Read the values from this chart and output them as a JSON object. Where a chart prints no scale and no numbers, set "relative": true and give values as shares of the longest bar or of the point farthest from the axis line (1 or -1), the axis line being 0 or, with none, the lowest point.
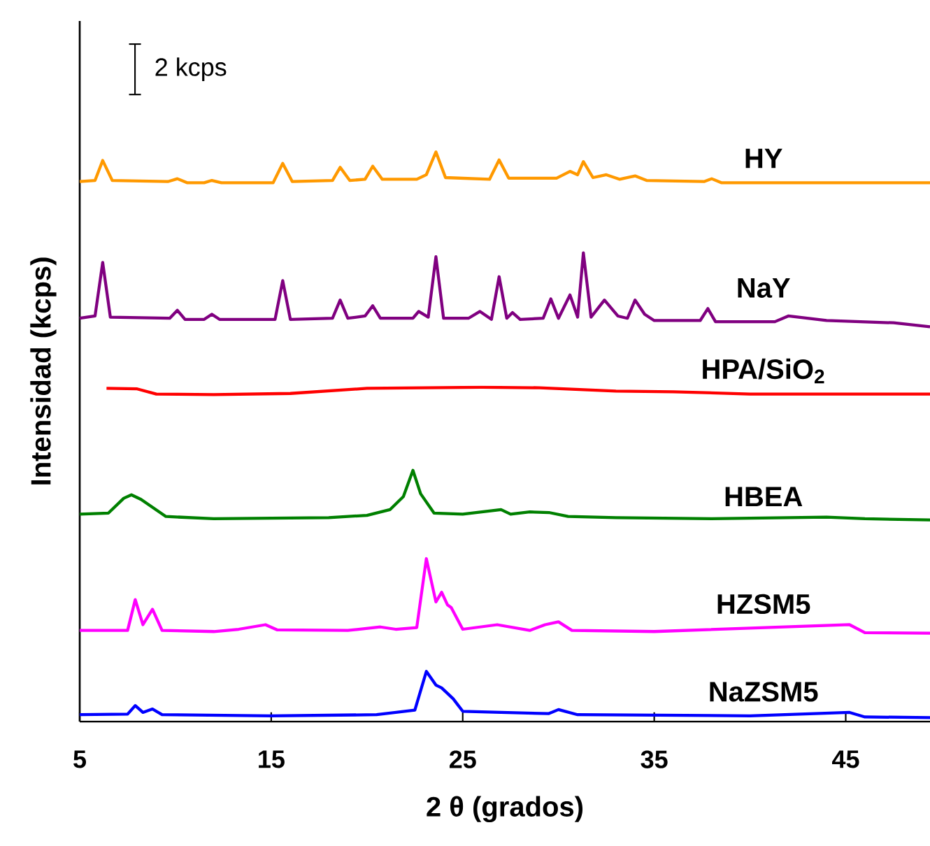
{
  "chart_data": {
    "type": "line",
    "relative": true,
    "xlabel": "2 θ (grados)",
    "ylabel": "Intensidad (kcps)",
    "xlim": [
      5,
      49.4
    ],
    "xticks": [
      5,
      15,
      25,
      35,
      45
    ],
    "annotations": [
      "2 kcps"
    ],
    "series": [
      {
        "name": "HY",
        "color": "#ff9900",
        "x": [
          5,
          5.8,
          6.2,
          6.7,
          9.6,
          10.1,
          10.6,
          11.5,
          11.9,
          12.4,
          15.1,
          15.6,
          16.1,
          18.2,
          18.6,
          19.1,
          19.9,
          20.3,
          20.8,
          22.6,
          23.1,
          23.6,
          24.1,
          26.4,
          26.9,
          27.4,
          29.9,
          30.6,
          31.0,
          31.3,
          31.8,
          32.5,
          33.2,
          34.0,
          34.6,
          37.6,
          38.0,
          38.5,
          49.4
        ],
        "values": [
          0.948,
          0.95,
          0.985,
          0.95,
          0.948,
          0.953,
          0.946,
          0.946,
          0.95,
          0.946,
          0.946,
          0.98,
          0.948,
          0.95,
          0.973,
          0.95,
          0.952,
          0.975,
          0.952,
          0.952,
          0.96,
          1.0,
          0.955,
          0.952,
          0.986,
          0.954,
          0.954,
          0.966,
          0.96,
          0.983,
          0.955,
          0.96,
          0.952,
          0.958,
          0.95,
          0.948,
          0.953,
          0.946,
          0.946
        ]
      },
      {
        "name": "NaY",
        "color": "#800080",
        "x": [
          5,
          5.8,
          6.2,
          6.6,
          9.7,
          10.1,
          10.5,
          11.5,
          11.9,
          12.3,
          15.2,
          15.6,
          16.0,
          18.2,
          18.6,
          19.0,
          19.9,
          20.3,
          20.7,
          22.4,
          22.7,
          23.2,
          23.6,
          24.0,
          25.3,
          25.9,
          26.5,
          26.9,
          27.3,
          27.6,
          28.0,
          29.2,
          29.6,
          30.0,
          30.6,
          31.0,
          31.3,
          31.7,
          32.4,
          33.1,
          33.6,
          34.0,
          34.5,
          35.0,
          37.4,
          37.8,
          38.2,
          41.3,
          42.0,
          44.0,
          47.5,
          49.4
        ],
        "values": [
          0.708,
          0.712,
          0.806,
          0.71,
          0.708,
          0.722,
          0.706,
          0.706,
          0.715,
          0.706,
          0.706,
          0.774,
          0.706,
          0.708,
          0.74,
          0.708,
          0.712,
          0.73,
          0.708,
          0.708,
          0.72,
          0.71,
          0.816,
          0.708,
          0.708,
          0.72,
          0.706,
          0.781,
          0.708,
          0.718,
          0.706,
          0.708,
          0.742,
          0.708,
          0.749,
          0.71,
          0.823,
          0.71,
          0.74,
          0.712,
          0.708,
          0.74,
          0.715,
          0.704,
          0.704,
          0.725,
          0.702,
          0.702,
          0.712,
          0.704,
          0.7,
          0.693
        ]
      },
      {
        "name": "HPA/SiO$_{2}$",
        "color": "#ff0000",
        "x": [
          6.4,
          8,
          9,
          12,
          16,
          20,
          23,
          26,
          29,
          33,
          36,
          40,
          45,
          49.4
        ],
        "values": [
          0.585,
          0.584,
          0.575,
          0.574,
          0.576,
          0.585,
          0.586,
          0.587,
          0.586,
          0.58,
          0.579,
          0.575,
          0.575,
          0.575
        ]
      },
      {
        "name": "HBEA",
        "color": "#008000",
        "x": [
          5,
          6.5,
          7.3,
          7.7,
          8.2,
          9.5,
          12,
          15,
          18,
          20,
          21.2,
          21.9,
          22.4,
          22.8,
          23.5,
          25,
          27,
          27.5,
          28.5,
          29.5,
          30.5,
          33,
          38,
          44,
          46,
          49.4
        ],
        "values": [
          0.364,
          0.366,
          0.392,
          0.398,
          0.39,
          0.36,
          0.356,
          0.357,
          0.358,
          0.362,
          0.372,
          0.395,
          0.441,
          0.4,
          0.366,
          0.364,
          0.372,
          0.364,
          0.368,
          0.367,
          0.36,
          0.358,
          0.356,
          0.359,
          0.356,
          0.354
        ]
      },
      {
        "name": "HZSM5",
        "color": "#ff00ff",
        "x": [
          5,
          7.5,
          7.9,
          8.3,
          8.8,
          9.3,
          12,
          13.3,
          14.7,
          15.3,
          19,
          20.7,
          21.5,
          22.6,
          23.1,
          23.6,
          23.9,
          24.2,
          24.4,
          25,
          26.8,
          28.5,
          29.3,
          30,
          30.7,
          35,
          45.2,
          46,
          49.4
        ],
        "values": [
          0.16,
          0.16,
          0.214,
          0.17,
          0.197,
          0.16,
          0.158,
          0.162,
          0.17,
          0.161,
          0.16,
          0.166,
          0.162,
          0.165,
          0.286,
          0.21,
          0.227,
          0.205,
          0.2,
          0.162,
          0.17,
          0.16,
          0.17,
          0.175,
          0.16,
          0.158,
          0.17,
          0.156,
          0.155
        ]
      },
      {
        "name": "NaZSM5",
        "color": "#0000ff",
        "x": [
          5,
          7.5,
          7.9,
          8.3,
          8.8,
          9.3,
          15,
          20.5,
          22.5,
          23.1,
          23.6,
          23.9,
          24.5,
          25,
          27,
          29.5,
          30,
          31,
          40,
          45.2,
          46,
          49.4
        ],
        "values": [
          0.012,
          0.013,
          0.028,
          0.016,
          0.022,
          0.012,
          0.01,
          0.012,
          0.02,
          0.088,
          0.064,
          0.059,
          0.04,
          0.018,
          0.016,
          0.014,
          0.021,
          0.012,
          0.01,
          0.016,
          0.008,
          0.007
        ]
      }
    ]
  }
}
